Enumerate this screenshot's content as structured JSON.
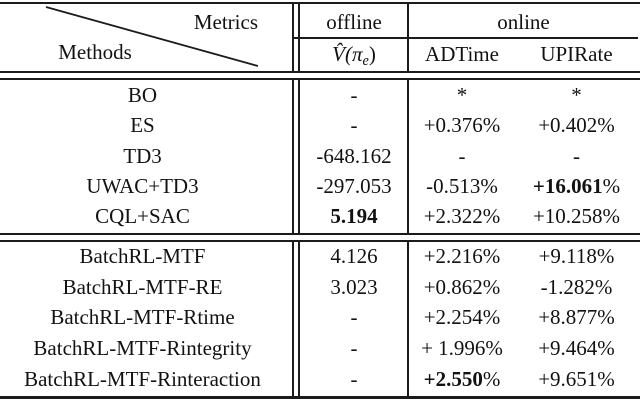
{
  "page": {
    "background": "#ffffff",
    "text_color": "#121212",
    "rule_color": "#1b1b1b"
  },
  "table": {
    "corner": {
      "metrics": "Metrics",
      "methods": "Methods"
    },
    "columns": {
      "offline": "offline",
      "online": "online",
      "value_metric": {
        "vhat": "V̂",
        "open_pi": "(π",
        "sub": "e",
        "close": ")"
      },
      "adtime": "ADTime",
      "upirate": "UPIRate"
    },
    "blocks": [
      {
        "name": "baselines",
        "rows": [
          {
            "method": "BO",
            "cells": [
              {
                "text": "-"
              },
              {
                "text": "*"
              },
              {
                "text": "*"
              }
            ]
          },
          {
            "method": "ES",
            "cells": [
              {
                "text": "-"
              },
              {
                "text": "+0.376%"
              },
              {
                "text": "+0.402%"
              }
            ]
          },
          {
            "method": "TD3",
            "cells": [
              {
                "text": "-648.162"
              },
              {
                "text": "-"
              },
              {
                "text": "-"
              }
            ]
          },
          {
            "method": "UWAC+TD3",
            "cells": [
              {
                "text": "-297.053"
              },
              {
                "text": "-0.513%"
              },
              {
                "text": "+16.061%",
                "bold": "+16.061"
              }
            ]
          },
          {
            "method": "CQL+SAC",
            "cells": [
              {
                "text": "5.194",
                "bold": "5.194"
              },
              {
                "text": "+2.322%"
              },
              {
                "text": "+10.258%"
              }
            ]
          }
        ]
      },
      {
        "name": "batchrl-variants",
        "rows": [
          {
            "method": "BatchRL-MTF",
            "cells": [
              {
                "text": "4.126"
              },
              {
                "text": "+2.216%"
              },
              {
                "text": "+9.118%"
              }
            ]
          },
          {
            "method": "BatchRL-MTF-RE",
            "cells": [
              {
                "text": "3.023"
              },
              {
                "text": "+0.862%"
              },
              {
                "text": "-1.282%"
              }
            ]
          },
          {
            "method": "BatchRL-MTF-Rtime",
            "cells": [
              {
                "text": "-"
              },
              {
                "text": "+2.254%"
              },
              {
                "text": "+8.877%"
              }
            ]
          },
          {
            "method": "BatchRL-MTF-Rintegrity",
            "cells": [
              {
                "text": "-"
              },
              {
                "text": "+ 1.996%"
              },
              {
                "text": "+9.464%"
              }
            ]
          },
          {
            "method": "BatchRL-MTF-Rinteraction",
            "cells": [
              {
                "text": "-"
              },
              {
                "text": "+2.550%",
                "bold": "+2.550"
              },
              {
                "text": "+9.651%"
              }
            ]
          }
        ]
      }
    ]
  }
}
